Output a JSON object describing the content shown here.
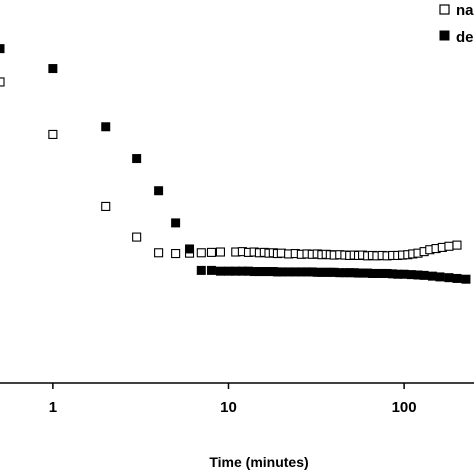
{
  "chart_data": {
    "type": "scatter",
    "title": "",
    "xlabel": "Time (minutes)",
    "ylabel": "",
    "xscale": "log",
    "xlim": [
      0.5,
      250
    ],
    "ylim": [
      0,
      1
    ],
    "grid": false,
    "legend_position": "top-right",
    "x_ticks": [
      {
        "value": 1,
        "label": "1"
      },
      {
        "value": 10,
        "label": "10"
      },
      {
        "value": 100,
        "label": "100"
      }
    ],
    "series": [
      {
        "name": "na",
        "marker": "open-square",
        "color": "#000000",
        "points": [
          [
            0.5,
            0.786
          ],
          [
            1,
            0.649
          ],
          [
            2,
            0.461
          ],
          [
            3,
            0.381
          ],
          [
            4,
            0.34
          ],
          [
            5,
            0.338
          ],
          [
            6,
            0.339
          ],
          [
            7,
            0.34
          ],
          [
            8,
            0.341
          ],
          [
            9,
            0.342
          ],
          [
            11,
            0.342
          ],
          [
            12,
            0.343
          ],
          [
            13,
            0.341
          ],
          [
            14,
            0.342
          ],
          [
            15,
            0.34
          ],
          [
            16,
            0.341
          ],
          [
            17,
            0.339
          ],
          [
            18,
            0.34
          ],
          [
            19,
            0.338
          ],
          [
            20,
            0.339
          ],
          [
            22,
            0.337
          ],
          [
            24,
            0.338
          ],
          [
            26,
            0.336
          ],
          [
            28,
            0.337
          ],
          [
            30,
            0.336
          ],
          [
            32,
            0.337
          ],
          [
            34,
            0.335
          ],
          [
            36,
            0.336
          ],
          [
            38,
            0.335
          ],
          [
            40,
            0.334
          ],
          [
            43,
            0.335
          ],
          [
            46,
            0.334
          ],
          [
            49,
            0.333
          ],
          [
            52,
            0.334
          ],
          [
            55,
            0.333
          ],
          [
            58,
            0.334
          ],
          [
            62,
            0.332
          ],
          [
            66,
            0.333
          ],
          [
            70,
            0.332
          ],
          [
            75,
            0.333
          ],
          [
            80,
            0.332
          ],
          [
            86,
            0.333
          ],
          [
            92,
            0.333
          ],
          [
            98,
            0.334
          ],
          [
            105,
            0.335
          ],
          [
            112,
            0.337
          ],
          [
            120,
            0.339
          ],
          [
            130,
            0.343
          ],
          [
            140,
            0.348
          ],
          [
            152,
            0.351
          ],
          [
            165,
            0.354
          ],
          [
            180,
            0.357
          ],
          [
            200,
            0.36
          ]
        ]
      },
      {
        "name": "de",
        "marker": "filled-square",
        "color": "#000000",
        "points": [
          [
            0.5,
            0.873
          ],
          [
            1,
            0.821
          ],
          [
            2,
            0.669
          ],
          [
            3,
            0.586
          ],
          [
            4,
            0.502
          ],
          [
            5,
            0.418
          ],
          [
            6,
            0.35
          ],
          [
            7,
            0.294
          ],
          [
            8,
            0.294
          ],
          [
            9,
            0.292
          ],
          [
            10,
            0.292
          ],
          [
            11,
            0.292
          ],
          [
            12,
            0.292
          ],
          [
            13,
            0.292
          ],
          [
            14,
            0.291
          ],
          [
            15,
            0.291
          ],
          [
            16,
            0.291
          ],
          [
            17,
            0.291
          ],
          [
            18,
            0.291
          ],
          [
            19,
            0.29
          ],
          [
            20,
            0.29
          ],
          [
            22,
            0.29
          ],
          [
            24,
            0.29
          ],
          [
            26,
            0.29
          ],
          [
            28,
            0.29
          ],
          [
            30,
            0.29
          ],
          [
            32,
            0.289
          ],
          [
            34,
            0.289
          ],
          [
            36,
            0.289
          ],
          [
            38,
            0.289
          ],
          [
            40,
            0.289
          ],
          [
            43,
            0.288
          ],
          [
            46,
            0.288
          ],
          [
            49,
            0.288
          ],
          [
            52,
            0.288
          ],
          [
            55,
            0.287
          ],
          [
            58,
            0.287
          ],
          [
            62,
            0.287
          ],
          [
            66,
            0.286
          ],
          [
            70,
            0.286
          ],
          [
            75,
            0.286
          ],
          [
            80,
            0.286
          ],
          [
            86,
            0.285
          ],
          [
            92,
            0.284
          ],
          [
            100,
            0.284
          ],
          [
            110,
            0.283
          ],
          [
            120,
            0.282
          ],
          [
            130,
            0.281
          ],
          [
            145,
            0.279
          ],
          [
            160,
            0.277
          ],
          [
            180,
            0.275
          ],
          [
            200,
            0.273
          ],
          [
            225,
            0.271
          ]
        ]
      }
    ]
  }
}
